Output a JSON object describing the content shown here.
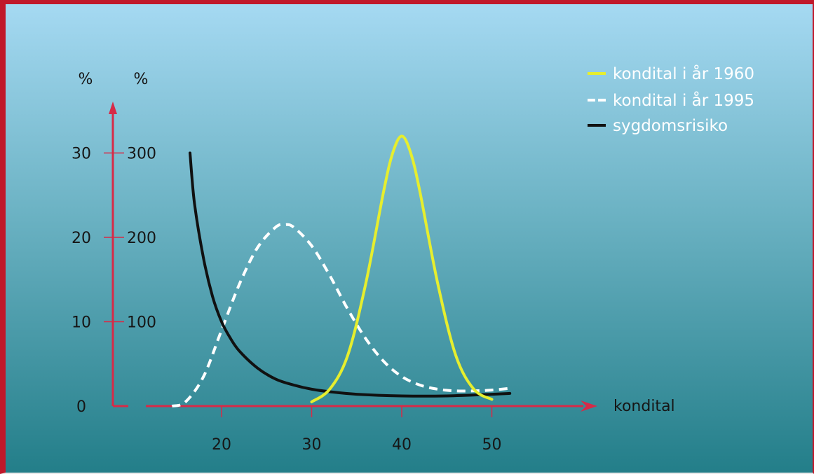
{
  "chart_data": {
    "type": "line",
    "xlabel": "kondital",
    "xticks": [
      20,
      30,
      40,
      50
    ],
    "xlim": [
      10,
      60
    ],
    "left_axis": {
      "unit": "%",
      "ticks": [
        0,
        10,
        20,
        30
      ],
      "ylim": [
        0,
        30
      ]
    },
    "right_axis": {
      "unit": "%",
      "ticks": [
        100,
        200,
        300
      ],
      "ylim": [
        0,
        300
      ]
    },
    "grid": false,
    "legend_position": "top-right",
    "series": [
      {
        "name": "kondital i år 1960",
        "color": "#e6ee2e",
        "style": "solid",
        "x": [
          30,
          32,
          34,
          36,
          38,
          39,
          40,
          41,
          42,
          44,
          46,
          48,
          50
        ],
        "y": [
          0.5,
          2.0,
          6.0,
          14.5,
          25.5,
          30.0,
          32.0,
          30.0,
          25.5,
          14.5,
          6.0,
          2.0,
          0.8
        ]
      },
      {
        "name": "kondital i år 1995",
        "color": "#ffffff",
        "style": "dashed",
        "x": [
          14.5,
          16,
          18,
          20,
          22,
          24,
          26,
          27,
          28,
          30,
          32,
          34,
          36,
          38,
          40,
          42,
          44,
          46,
          48,
          50,
          52
        ],
        "y": [
          0,
          0.5,
          3.5,
          9.0,
          14.5,
          18.8,
          21.2,
          21.5,
          21.2,
          19.0,
          15.5,
          11.5,
          8.0,
          5.3,
          3.5,
          2.5,
          2.0,
          1.8,
          1.8,
          1.9,
          2.1
        ]
      },
      {
        "name": "sygdomsrisiko",
        "color": "#111111",
        "style": "solid",
        "x": [
          16.5,
          17,
          18,
          19,
          20,
          21,
          22,
          24,
          26,
          28,
          30,
          32,
          35,
          40,
          45,
          50,
          52
        ],
        "y": [
          30.0,
          24.0,
          17.5,
          13.0,
          10.0,
          8.0,
          6.5,
          4.5,
          3.2,
          2.5,
          2.0,
          1.7,
          1.4,
          1.2,
          1.2,
          1.4,
          1.5
        ]
      }
    ]
  }
}
